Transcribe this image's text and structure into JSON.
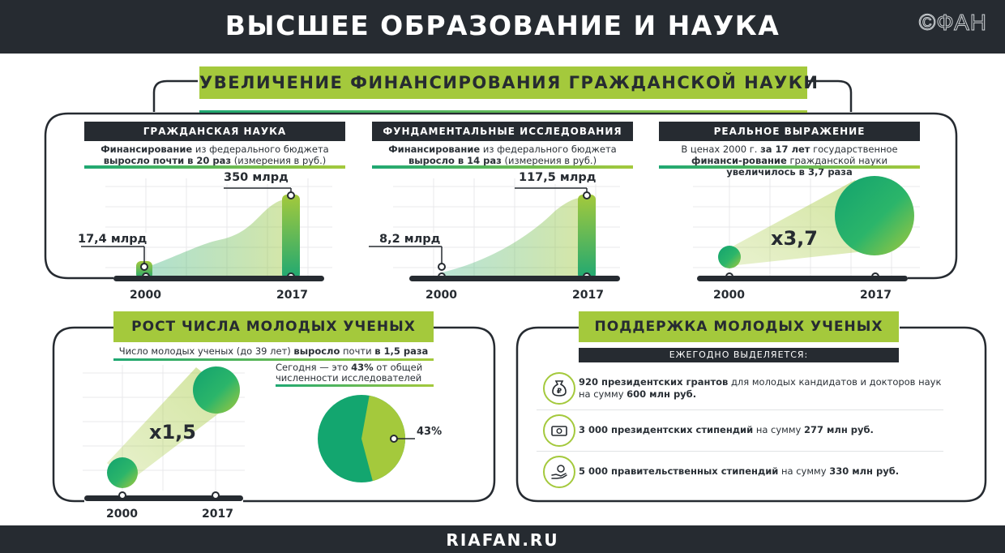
{
  "header": {
    "title": "ВЫСШЕЕ ОБРАЗОВАНИЕ И НАУКА",
    "logo": "©ФАН"
  },
  "footer": {
    "site": "RIAFAN.RU"
  },
  "funding": {
    "title": "УВЕЛИЧЕНИЕ ФИНАНСИРОВАНИЯ ГРАЖДАНСКОЙ НАУКИ",
    "civil": {
      "label": "ГРАЖДАНСКАЯ НАУКА",
      "desc_b1": "Финансирование",
      "desc_t1": " из федерального бюджета ",
      "desc_b2": "выросло почти в 20 раз",
      "desc_t2": "  (измерения в руб.)",
      "start_value": "17,4 млрд",
      "end_value": "350 млрд",
      "year_start": "2000",
      "year_end": "2017"
    },
    "fundamental": {
      "label": "ФУНДАМЕНТАЛЬНЫЕ ИССЛЕДОВАНИЯ",
      "desc_b1": "Финансирование",
      "desc_t1": " из федерального бюджета ",
      "desc_b2": "выросло в 14 раз",
      "desc_t2": " (измерения в руб.)",
      "start_value": "8,2 млрд",
      "end_value": "117,5 млрд",
      "year_start": "2000",
      "year_end": "2017"
    },
    "real": {
      "label": "РЕАЛЬНОЕ ВЫРАЖЕНИЕ",
      "desc_t1": "В ценах 2000 г. ",
      "desc_b1": "за 17 лет",
      "desc_t2": " государственное ",
      "desc_b2": "финанси-рование",
      "desc_t3": " гражданской науки ",
      "desc_b3": "увеличилось в 3,7 раза",
      "multiplier": "x3,7",
      "year_start": "2000",
      "year_end": "2017"
    }
  },
  "young": {
    "title": "РОСТ ЧИСЛА МОЛОДЫХ УЧЕНЫХ",
    "desc_t1": "Число молодых ученых (до 39 лет) ",
    "desc_b1": "выросло",
    "desc_t2": " почти ",
    "desc_b2": "в 1,5 раза",
    "multiplier": "x1,5",
    "today_t1": "Сегодня — это ",
    "today_b1": "43%",
    "today_t2": " от общей численности исследователей",
    "pie_label": "43%",
    "year_start": "2000",
    "year_end": "2017"
  },
  "support": {
    "title": "ПОДДЕРЖКА МОЛОДЫХ УЧЕНЫХ",
    "subtitle": "ЕЖЕГОДНО ВЫДЕЛЯЕТСЯ:",
    "items": [
      {
        "icon": "money-bag-icon",
        "bold1": "920 президентских грантов",
        "text1": " для молодых кандидатов и докторов наук на сумму ",
        "bold2": "600 млн руб."
      },
      {
        "icon": "banknote-icon",
        "bold1": "3 000 президентских стипендий",
        "text1": " на сумму ",
        "bold2": "277 млн руб."
      },
      {
        "icon": "coin-hand-icon",
        "bold1": "5 000 правительственных стипендий",
        "text1": " на сумму ",
        "bold2": "330 млн руб."
      }
    ]
  },
  "chart_data": [
    {
      "type": "area",
      "title": "ГРАЖДАНСКАЯ НАУКА",
      "categories": [
        "2000",
        "2017"
      ],
      "values": [
        17.4,
        350
      ]
    },
    {
      "type": "area",
      "title": "ФУНДАМЕНТАЛЬНЫЕ ИССЛЕДОВАНИЯ",
      "categories": [
        "2000",
        "2017"
      ],
      "values": [
        8.2,
        117.5
      ]
    },
    {
      "type": "bubble",
      "title": "РЕАЛЬНОЕ ВЫРАЖЕНИЕ",
      "categories": [
        "2000",
        "2017"
      ],
      "values": [
        1,
        3.7
      ]
    },
    {
      "type": "bubble",
      "title": "РОСТ ЧИСЛА МОЛОДЫХ УЧЕНЫХ",
      "categories": [
        "2000",
        "2017"
      ],
      "values": [
        1,
        1.5
      ]
    },
    {
      "type": "pie",
      "values": [
        43,
        57
      ]
    }
  ],
  "colors": {
    "dark": "#262b31",
    "green": "#a4c93c",
    "teal": "#1fa872"
  }
}
